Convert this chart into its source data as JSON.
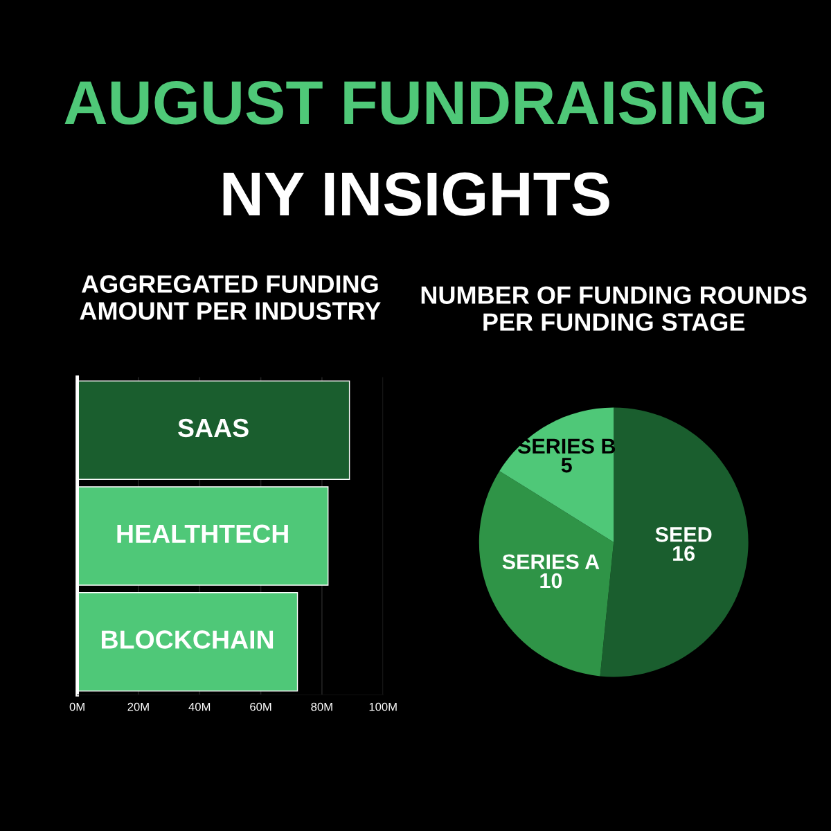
{
  "chart_data": [
    {
      "type": "bar",
      "orientation": "horizontal",
      "title": "AGGREGATED FUNDING\nAMOUNT PER INDUSTRY",
      "annotations": [
        "AUGUST FUNDRAISING",
        "NY INSIGHTS"
      ],
      "categories": [
        "SAAS",
        "HEALTHTECH",
        "BLOCKCHAIN"
      ],
      "values": [
        89,
        82,
        72
      ],
      "colors": [
        "#1a5e2e",
        "#4fc878",
        "#4fc878"
      ],
      "xlim": [
        0,
        100
      ],
      "xticks": [
        {
          "value": 0,
          "label": "0M"
        },
        {
          "value": 20,
          "label": "20M"
        },
        {
          "value": 40,
          "label": "40M"
        },
        {
          "value": 60,
          "label": "60M"
        },
        {
          "value": 80,
          "label": "80M"
        },
        {
          "value": 100,
          "label": "100M"
        }
      ],
      "grid": "x",
      "legend": false
    },
    {
      "type": "pie",
      "title": "NUMBER OF FUNDING ROUNDS\nPER FUNDING STAGE",
      "categories": [
        "SEED",
        "SERIES A",
        "SERIES B"
      ],
      "values": [
        16,
        10,
        5
      ],
      "colors": [
        "#1a5e2e",
        "#2f9447",
        "#4fc878"
      ],
      "data_labels": true,
      "legend": false
    }
  ]
}
